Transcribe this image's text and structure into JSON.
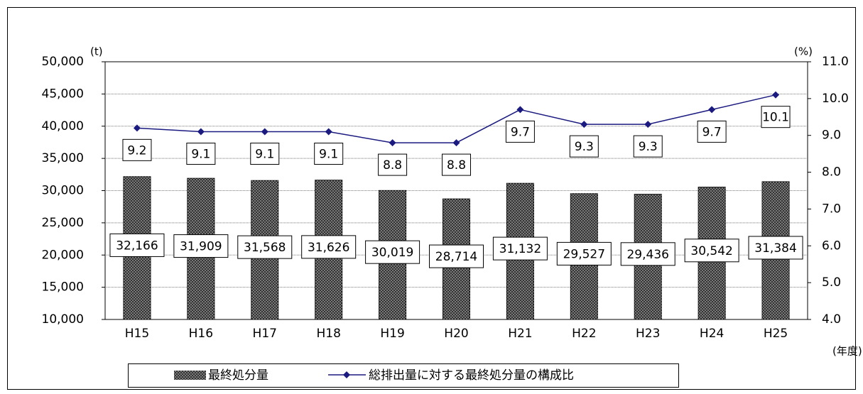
{
  "chart_data": {
    "type": "bar_line",
    "categories": [
      "H15",
      "H16",
      "H17",
      "H18",
      "H19",
      "H20",
      "H21",
      "H22",
      "H23",
      "H24",
      "H25"
    ],
    "series": [
      {
        "name": "最終処分量",
        "color": "#333333",
        "type": "bar",
        "values": [
          32166,
          31909,
          31568,
          31626,
          30019,
          28714,
          31132,
          29527,
          29436,
          30542,
          31384
        ],
        "value_labels": [
          "32,166",
          "31,909",
          "31,568",
          "31,626",
          "30,019",
          "28,714",
          "31,132",
          "29,527",
          "29,436",
          "30,542",
          "31,384"
        ]
      },
      {
        "name": "総排出量に対する最終処分量の構成比",
        "color": "#1a1a80",
        "type": "line",
        "axis": "y2",
        "values": [
          9.2,
          9.1,
          9.1,
          9.1,
          8.8,
          8.8,
          9.7,
          9.3,
          9.3,
          9.7,
          10.1
        ]
      }
    ],
    "ylabel": "(t)",
    "y2label": "(%)",
    "xlabel": "(年度)",
    "ylim": [
      10000,
      50000
    ],
    "yticks": [
      {
        "value": 10000,
        "label": "10,000"
      },
      {
        "value": 15000,
        "label": "15,000"
      },
      {
        "value": 20000,
        "label": "20,000"
      },
      {
        "value": 25000,
        "label": "25,000"
      },
      {
        "value": 30000,
        "label": "30,000"
      },
      {
        "value": 35000,
        "label": "35,000"
      },
      {
        "value": 40000,
        "label": "40,000"
      },
      {
        "value": 45000,
        "label": "45,000"
      },
      {
        "value": 50000,
        "label": "50,000"
      }
    ],
    "y2lim": [
      4,
      11
    ],
    "y2ticks": [
      {
        "value": 4,
        "label": "4.0"
      },
      {
        "value": 5,
        "label": "5.0"
      },
      {
        "value": 6,
        "label": "6.0"
      },
      {
        "value": 7,
        "label": "7.0"
      },
      {
        "value": 8,
        "label": "8.0"
      },
      {
        "value": 9,
        "label": "9.0"
      },
      {
        "value": 10,
        "label": "10.0"
      },
      {
        "value": 11,
        "label": "11.0"
      }
    ],
    "grid": true,
    "legend": "bottom"
  }
}
